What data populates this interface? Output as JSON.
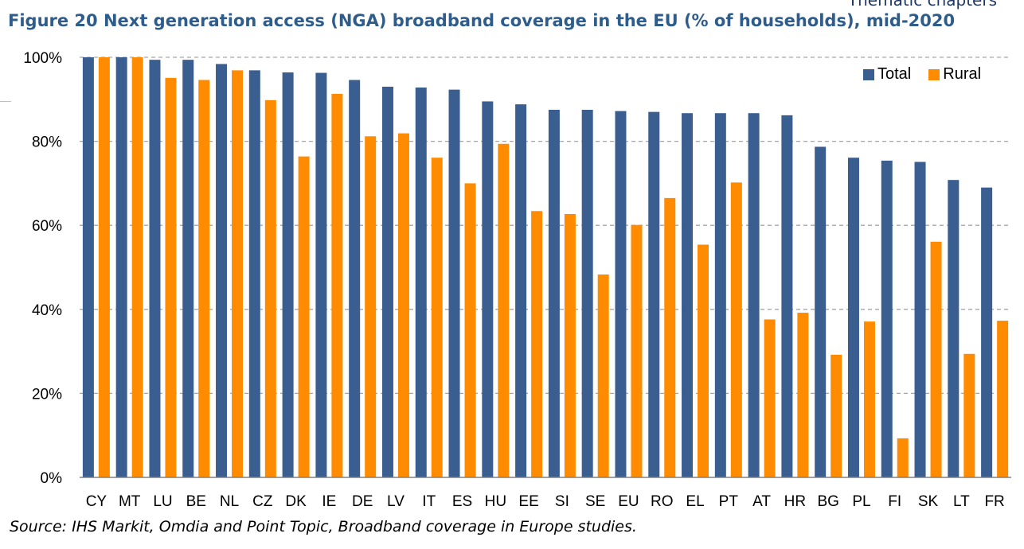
{
  "header_fragment": "Thematic chapters",
  "figure_title": "Figure 20 Next generation access (NGA) broadband coverage in the EU (% of households), mid-2020",
  "source_note": "Source: IHS Markit, Omdia and Point Topic, Broadband coverage in Europe studies.",
  "colors": {
    "total": "#3a5e8f",
    "rural": "#ff8c00",
    "grid": "#a6a6a6",
    "axis": "#808080"
  },
  "chart_data": {
    "type": "bar",
    "title": "",
    "xlabel": "",
    "ylabel": "",
    "ylim": [
      0,
      100
    ],
    "y_ticks": [
      "0%",
      "20%",
      "40%",
      "60%",
      "80%",
      "100%"
    ],
    "grid": true,
    "legend_placement": "top-right",
    "categories": [
      "CY",
      "MT",
      "LU",
      "BE",
      "NL",
      "CZ",
      "DK",
      "IE",
      "DE",
      "LV",
      "IT",
      "ES",
      "HU",
      "EE",
      "SI",
      "SE",
      "EU",
      "RO",
      "EL",
      "PT",
      "AT",
      "HR",
      "BG",
      "PL",
      "FI",
      "SK",
      "LT",
      "FR"
    ],
    "series": [
      {
        "name": "Total",
        "values": [
          100,
          100,
          99.4,
          99.4,
          98.4,
          96.9,
          96.4,
          96.3,
          94.6,
          93.0,
          92.8,
          92.3,
          89.5,
          88.8,
          87.5,
          87.5,
          87.2,
          87.0,
          86.7,
          86.7,
          86.7,
          86.2,
          78.7,
          76.1,
          75.4,
          75.1,
          70.8,
          69.0
        ]
      },
      {
        "name": "Rural",
        "values": [
          100,
          100,
          95.1,
          94.6,
          96.9,
          89.8,
          76.4,
          91.3,
          81.2,
          81.9,
          76.1,
          70.0,
          79.4,
          63.4,
          62.7,
          48.3,
          60.1,
          66.5,
          55.4,
          70.2,
          37.6,
          39.2,
          29.2,
          37.1,
          9.3,
          56.1,
          29.4,
          37.3
        ]
      }
    ]
  }
}
